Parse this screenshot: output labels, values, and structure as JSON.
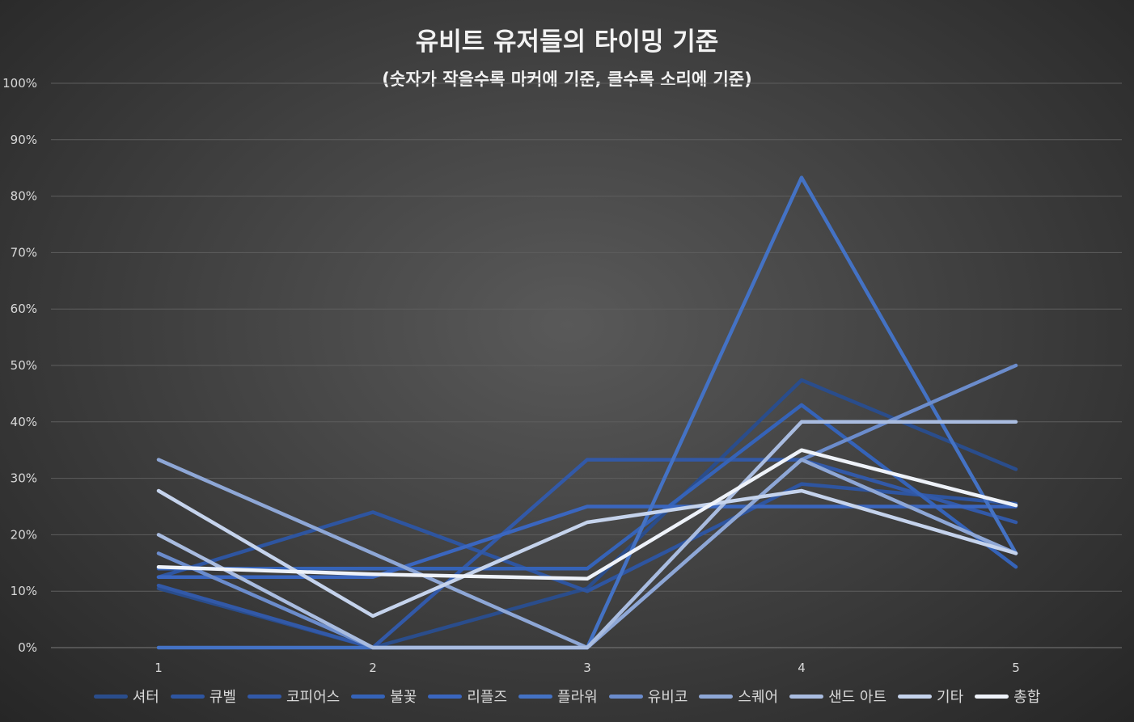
{
  "chart_data": {
    "type": "line",
    "title": "유비트 유저들의 타이밍 기준",
    "subtitle": "(숫자가 작을수록 마커에 기준, 클수록 소리에 기준)",
    "x": [
      "1",
      "2",
      "3",
      "4",
      "5"
    ],
    "ylim": [
      0,
      100
    ],
    "yticks": [
      "0%",
      "10%",
      "20%",
      "30%",
      "40%",
      "50%",
      "60%",
      "70%",
      "80%",
      "90%",
      "100%"
    ],
    "grid": true,
    "legend_position": "bottom",
    "series": [
      {
        "name": "셔터",
        "color": "#2a4d8c",
        "values": [
          10.5,
          0,
          10.5,
          47.4,
          31.6
        ]
      },
      {
        "name": "큐벨",
        "color": "#2e55a0",
        "values": [
          12.5,
          24,
          10,
          29,
          25.5
        ]
      },
      {
        "name": "코피어스",
        "color": "#3259a8",
        "values": [
          11,
          0,
          33.3,
          33.3,
          22.2
        ]
      },
      {
        "name": "불꽃",
        "color": "#3563b8",
        "values": [
          14,
          14,
          14,
          43,
          14.3
        ]
      },
      {
        "name": "리플즈",
        "color": "#3a66bf",
        "values": [
          12.5,
          12.5,
          25,
          25,
          25
        ]
      },
      {
        "name": "플라워",
        "color": "#4472c4",
        "values": [
          0,
          0,
          0,
          83.3,
          16.7
        ]
      },
      {
        "name": "유비코",
        "color": "#6b8ccc",
        "values": [
          16.7,
          0,
          0,
          33.3,
          50
        ]
      },
      {
        "name": "스퀘어",
        "color": "#8ea7d6",
        "values": [
          33.3,
          16.7,
          0,
          33.3,
          16.7
        ]
      },
      {
        "name": "샌드 아트",
        "color": "#a9bce0",
        "values": [
          20,
          0,
          0,
          40,
          40
        ]
      },
      {
        "name": "기타",
        "color": "#c5d3ec",
        "values": [
          27.8,
          5.6,
          22.2,
          27.8,
          16.7
        ]
      },
      {
        "name": "총합",
        "color": "#eef2f9",
        "values": [
          14.3,
          13,
          12.2,
          35,
          25.2
        ]
      }
    ]
  }
}
